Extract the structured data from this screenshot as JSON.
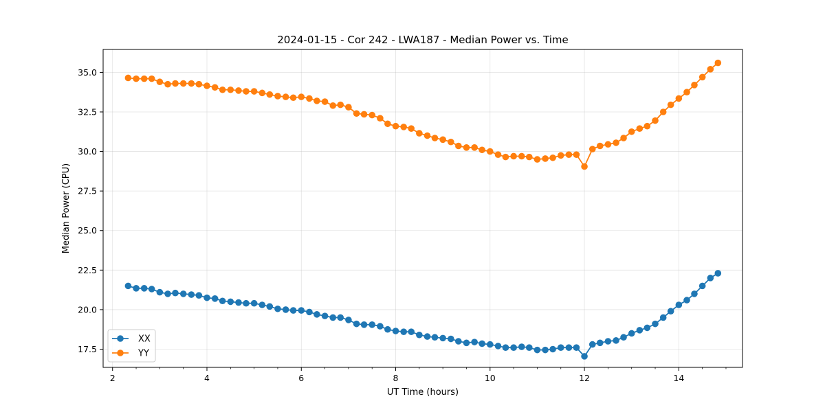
{
  "chart_data": {
    "type": "line",
    "title": "2024-01-15 - Cor 242 - LWA187 - Median Power vs. Time",
    "xlabel": "UT Time (hours)",
    "ylabel": "Median Power (CPU)",
    "xlim": [
      1.8,
      15.35
    ],
    "ylim": [
      16.35,
      36.45
    ],
    "xticks": [
      2,
      4,
      6,
      8,
      10,
      12,
      14
    ],
    "xtick_labels": [
      "2",
      "4",
      "6",
      "8",
      "10",
      "12",
      "14"
    ],
    "yticks": [
      17.5,
      20.0,
      22.5,
      25.0,
      27.5,
      30.0,
      32.5,
      35.0
    ],
    "ytick_labels": [
      "17.5",
      "20.0",
      "22.5",
      "25.0",
      "27.5",
      "30.0",
      "32.5",
      "35.0"
    ],
    "grid": true,
    "legend_position": "lower-left",
    "x": [
      2.33,
      2.5,
      2.67,
      2.83,
      3.0,
      3.17,
      3.33,
      3.5,
      3.67,
      3.83,
      4.0,
      4.17,
      4.33,
      4.5,
      4.67,
      4.83,
      5.0,
      5.17,
      5.33,
      5.5,
      5.67,
      5.83,
      6.0,
      6.17,
      6.33,
      6.5,
      6.67,
      6.83,
      7.0,
      7.17,
      7.33,
      7.5,
      7.67,
      7.83,
      8.0,
      8.17,
      8.33,
      8.5,
      8.67,
      8.83,
      9.0,
      9.17,
      9.33,
      9.5,
      9.67,
      9.83,
      10.0,
      10.17,
      10.33,
      10.5,
      10.67,
      10.83,
      11.0,
      11.17,
      11.33,
      11.5,
      11.67,
      11.83,
      12.0,
      12.17,
      12.33,
      12.5,
      12.67,
      12.83,
      13.0,
      13.17,
      13.33,
      13.5,
      13.67,
      13.83,
      14.0,
      14.17,
      14.33,
      14.5,
      14.67,
      14.83
    ],
    "series": [
      {
        "name": "XX",
        "color": "#1f77b4",
        "values": [
          21.5,
          21.35,
          21.35,
          21.3,
          21.1,
          21.0,
          21.05,
          21.0,
          20.95,
          20.9,
          20.75,
          20.7,
          20.55,
          20.5,
          20.45,
          20.4,
          20.4,
          20.3,
          20.2,
          20.05,
          20.0,
          19.95,
          19.95,
          19.85,
          19.7,
          19.6,
          19.5,
          19.5,
          19.35,
          19.1,
          19.05,
          19.05,
          18.95,
          18.75,
          18.65,
          18.6,
          18.6,
          18.4,
          18.3,
          18.25,
          18.2,
          18.15,
          18.0,
          17.9,
          17.95,
          17.85,
          17.8,
          17.7,
          17.6,
          17.6,
          17.65,
          17.6,
          17.45,
          17.45,
          17.5,
          17.6,
          17.6,
          17.6,
          17.05,
          17.8,
          17.9,
          18.0,
          18.05,
          18.25,
          18.5,
          18.7,
          18.85,
          19.1,
          19.5,
          19.9,
          20.3,
          20.6,
          21.0,
          21.5,
          22.0,
          22.3
        ]
      },
      {
        "name": "YY",
        "color": "#ff7f0e",
        "values": [
          34.65,
          34.6,
          34.6,
          34.6,
          34.4,
          34.25,
          34.3,
          34.3,
          34.3,
          34.25,
          34.15,
          34.05,
          33.9,
          33.9,
          33.85,
          33.8,
          33.8,
          33.7,
          33.6,
          33.5,
          33.45,
          33.4,
          33.45,
          33.35,
          33.2,
          33.15,
          32.9,
          32.95,
          32.8,
          32.4,
          32.35,
          32.3,
          32.1,
          31.75,
          31.6,
          31.55,
          31.45,
          31.15,
          31.0,
          30.85,
          30.75,
          30.6,
          30.35,
          30.25,
          30.25,
          30.1,
          30.0,
          29.8,
          29.65,
          29.7,
          29.7,
          29.65,
          29.5,
          29.55,
          29.6,
          29.75,
          29.8,
          29.8,
          29.05,
          30.15,
          30.35,
          30.45,
          30.55,
          30.85,
          31.25,
          31.45,
          31.6,
          31.95,
          32.5,
          32.95,
          33.35,
          33.75,
          34.2,
          34.7,
          35.2,
          35.6
        ]
      }
    ]
  }
}
